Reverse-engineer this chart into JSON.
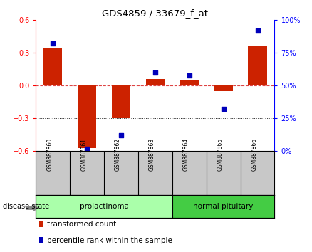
{
  "title": "GDS4859 / 33679_f_at",
  "samples": [
    "GSM887860",
    "GSM887861",
    "GSM887862",
    "GSM887863",
    "GSM887864",
    "GSM887865",
    "GSM887866"
  ],
  "transformed_count": [
    0.35,
    -0.57,
    -0.3,
    0.06,
    0.05,
    -0.05,
    0.37
  ],
  "percentile_rank": [
    82,
    2,
    12,
    60,
    58,
    32,
    92
  ],
  "groups": [
    {
      "label": "prolactinoma",
      "indices": [
        0,
        1,
        2,
        3
      ],
      "color": "#aaffaa"
    },
    {
      "label": "normal pituitary",
      "indices": [
        4,
        5,
        6
      ],
      "color": "#44cc44"
    }
  ],
  "ylim_left": [
    -0.6,
    0.6
  ],
  "ylim_right": [
    0,
    100
  ],
  "yticks_left": [
    -0.6,
    -0.3,
    0.0,
    0.3,
    0.6
  ],
  "yticks_right": [
    0,
    25,
    50,
    75,
    100
  ],
  "bar_color": "#cc2200",
  "dot_color": "#0000bb",
  "zero_line_color": "#dd4444",
  "grid_color": "#222222",
  "bg_color": "#ffffff",
  "label_tc": "transformed count",
  "label_pr": "percentile rank within the sample",
  "disease_state_label": "disease state",
  "sample_box_color": "#c8c8c8",
  "group_box_border": "#000000"
}
